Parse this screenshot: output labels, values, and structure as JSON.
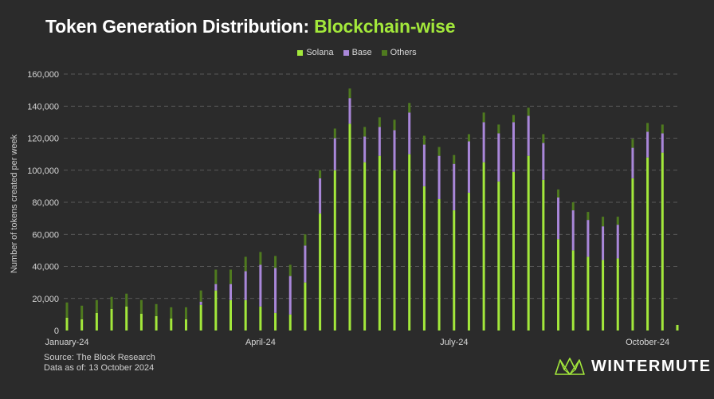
{
  "header": {
    "title_main": "Token Generation Distribution: ",
    "title_accent": "Blockchain-wise"
  },
  "colors": {
    "background": "#2b2b2b",
    "solana": "#a3e83b",
    "base": "#a987d9",
    "others": "#4f7a1f",
    "accent": "#a3e83b",
    "grid": "#6a6a6a"
  },
  "legend": [
    {
      "label": "Solana",
      "color": "#a3e83b"
    },
    {
      "label": "Base",
      "color": "#a987d9"
    },
    {
      "label": "Others",
      "color": "#4f7a1f"
    }
  ],
  "chart_data": {
    "type": "bar",
    "stacked": true,
    "ylabel": "Number of tokens created per week",
    "ylim": [
      0,
      160000
    ],
    "yticks": [
      0,
      20000,
      40000,
      60000,
      80000,
      100000,
      120000,
      140000,
      160000
    ],
    "ytick_labels": [
      "0",
      "20,000",
      "40,000",
      "60,000",
      "80,000",
      "100,000",
      "120,000",
      "140,000",
      "160,000"
    ],
    "x_tick_labels": [
      {
        "label": "January-24",
        "index": 0
      },
      {
        "label": "April-24",
        "index": 13
      },
      {
        "label": "July-24",
        "index": 26
      },
      {
        "label": "October-24",
        "index": 39
      }
    ],
    "grid": true,
    "legend_position": "top-center",
    "series": [
      {
        "name": "Solana",
        "values": [
          8000,
          7000,
          11000,
          13500,
          15000,
          10500,
          9000,
          7500,
          7000,
          16000,
          25000,
          19000,
          19000,
          15000,
          11000,
          10000,
          30000,
          73000,
          100000,
          129000,
          105000,
          109000,
          100000,
          110000,
          90000,
          82000,
          75000,
          86000,
          105000,
          93000,
          99000,
          109000,
          94000,
          57000,
          50000,
          46000,
          44000,
          45000,
          95000,
          108000,
          111000,
          3500
        ]
      },
      {
        "name": "Base",
        "values": [
          0,
          0,
          0,
          0,
          0,
          0,
          0,
          0,
          0,
          2000,
          4000,
          10000,
          18000,
          26000,
          28000,
          24000,
          23000,
          22000,
          20000,
          16000,
          16000,
          18000,
          25000,
          26000,
          26000,
          27000,
          29000,
          32000,
          25000,
          30000,
          31000,
          25000,
          23000,
          26000,
          25000,
          23000,
          21000,
          21000,
          19000,
          16000,
          12000,
          0
        ]
      },
      {
        "name": "Others",
        "values": [
          9500,
          8500,
          8000,
          7500,
          8000,
          8500,
          7500,
          7000,
          7500,
          7000,
          9000,
          9000,
          9000,
          8000,
          7500,
          7000,
          7000,
          5000,
          6000,
          6000,
          6000,
          6000,
          6500,
          6000,
          5500,
          5500,
          5500,
          4500,
          6000,
          5500,
          4500,
          5000,
          5500,
          5000,
          5000,
          5000,
          6000,
          5000,
          5500,
          5500,
          5500,
          0
        ]
      }
    ]
  },
  "footer": {
    "source": "Source: The Block Research",
    "asof": "Data as of: 13 October 2024"
  },
  "brand": {
    "name": "WINTERMUTE"
  }
}
